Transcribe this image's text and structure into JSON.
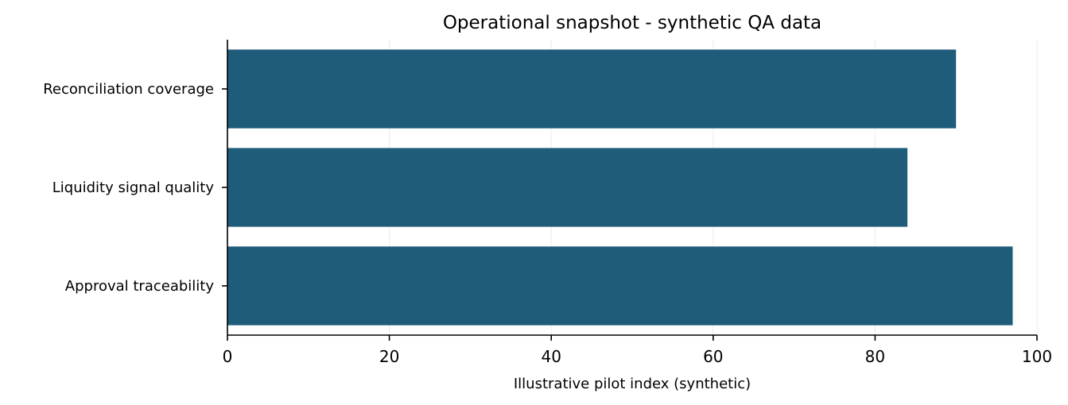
{
  "chart_data": {
    "type": "bar",
    "orientation": "horizontal",
    "title": "Operational snapshot - synthetic QA data",
    "xlabel": "Illustrative pilot index (synthetic)",
    "ylabel": "",
    "categories": [
      "Reconciliation coverage",
      "Liquidity signal quality",
      "Approval traceability"
    ],
    "values": [
      90,
      84,
      97
    ],
    "xlim": [
      0,
      100
    ],
    "xticks": [
      0,
      20,
      40,
      60,
      80,
      100
    ],
    "grid": "vertical",
    "bar_color": "#1f5c7a",
    "grid_color": "#ececec"
  }
}
